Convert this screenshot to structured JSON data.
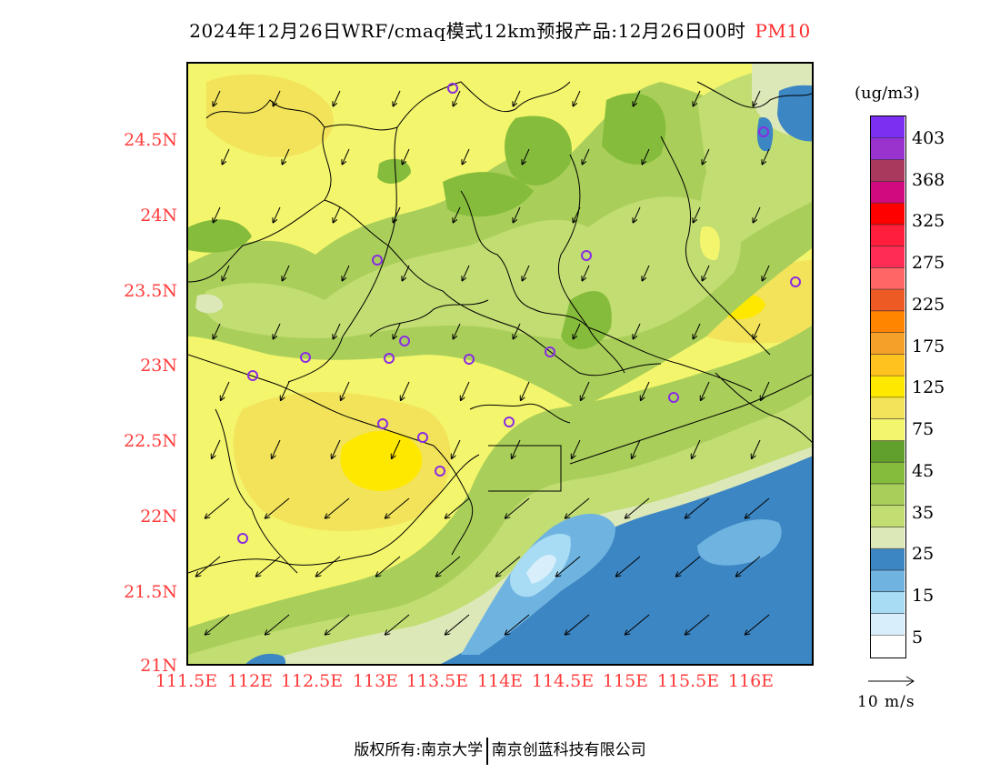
{
  "title": {
    "main": "2024年12月26日WRF/cmaq模式12km预报产品:12月26日00时",
    "pollutant": "PM10"
  },
  "map": {
    "lat_labels": [
      "24.5N",
      "24N",
      "23.5N",
      "23N",
      "22.5N",
      "22N",
      "21.5N",
      "21N"
    ],
    "lon_labels": [
      "111.5E",
      "112E",
      "112.5E",
      "113E",
      "113.5E",
      "114E",
      "114.5E",
      "115E",
      "115.5E",
      "116E"
    ],
    "lat_range": [
      21.0,
      25.0
    ],
    "lon_range": [
      111.5,
      116.5
    ],
    "wind_direction": "northeasterly",
    "station_color": "#8a2be2"
  },
  "colorbar": {
    "units": "(ug/m3)",
    "levels": [
      "403",
      "368",
      "325",
      "275",
      "225",
      "175",
      "125",
      "75",
      "45",
      "35",
      "25",
      "15",
      "5"
    ],
    "colors": [
      "#ffffff",
      "#d8eefb",
      "#a8dcf5",
      "#6fb4e0",
      "#3c86c4",
      "#dde8b8",
      "#c2dd72",
      "#a9cf5a",
      "#86bc3c",
      "#62a02e",
      "#f3f56c",
      "#f2e35a",
      "#ffe800",
      "#ffc21e",
      "#f5a028",
      "#ff8400",
      "#ee5a24",
      "#ff6666",
      "#ff2d55",
      "#ff1f3c",
      "#ff0000",
      "#d10a80",
      "#a93a5e",
      "#9a32cd",
      "#7b2ff0"
    ]
  },
  "wind_reference": {
    "label": "10 m/s"
  },
  "footer": {
    "copyright": "版权所有:南京大学",
    "company": "南京创蓝科技有限公司"
  }
}
